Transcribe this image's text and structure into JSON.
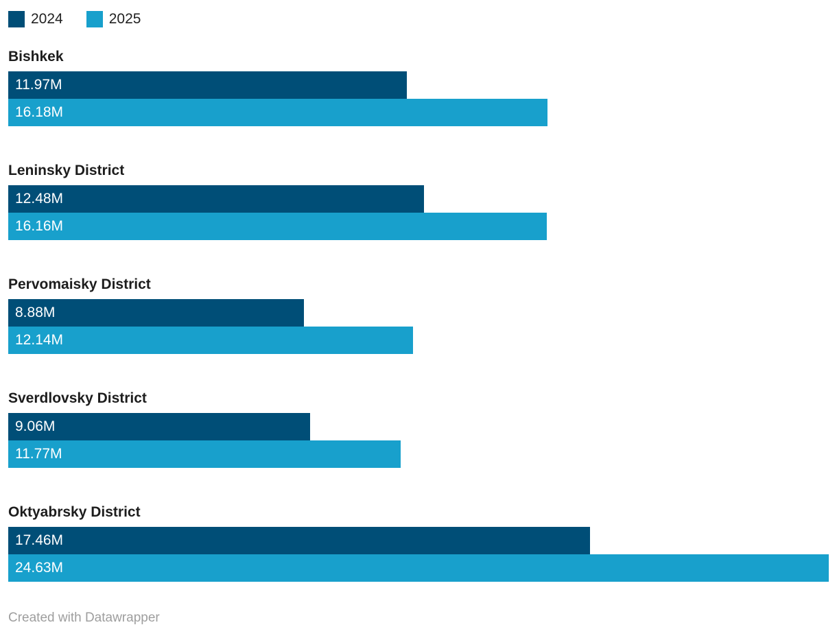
{
  "legend": {
    "items": [
      {
        "label": "2024",
        "color": "#004e77"
      },
      {
        "label": "2025",
        "color": "#18a0cc"
      }
    ]
  },
  "chart_data": {
    "type": "bar",
    "orientation": "horizontal",
    "title": "",
    "xlabel": "",
    "ylabel": "",
    "xlim": [
      0,
      24.63
    ],
    "grid": false,
    "legend_position": "top-left",
    "categories": [
      "Bishkek",
      "Leninsky District",
      "Pervomaisky District",
      "Sverdlovsky District",
      "Oktyabrsky District"
    ],
    "series": [
      {
        "name": "2024",
        "color": "#004e77",
        "values": [
          11.97,
          12.48,
          8.88,
          9.06,
          17.46
        ],
        "labels": [
          "11.97M",
          "12.48M",
          "8.88M",
          "9.06M",
          "17.46M"
        ]
      },
      {
        "name": "2025",
        "color": "#18a0cc",
        "values": [
          16.18,
          16.16,
          12.14,
          11.77,
          24.63
        ],
        "labels": [
          "16.18M",
          "16.16M",
          "12.14M",
          "11.77M",
          "24.63M"
        ]
      }
    ],
    "unit": "M"
  },
  "footer": {
    "credit": "Created with Datawrapper"
  }
}
